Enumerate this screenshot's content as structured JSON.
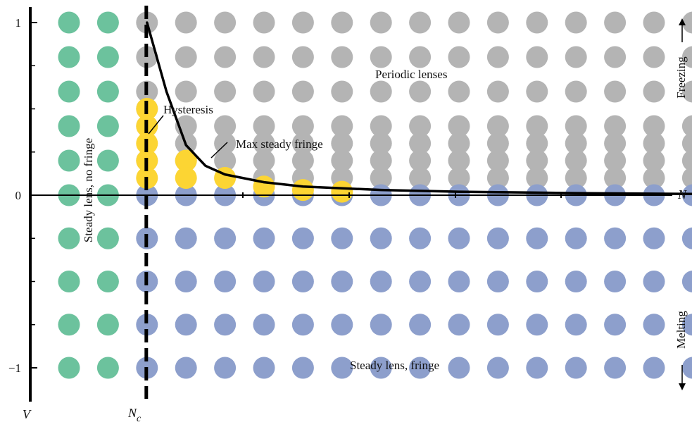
{
  "chart_data": {
    "type": "scatter",
    "title": "",
    "xlabel": "N",
    "ylabel": "V",
    "critical_label_base": "N",
    "critical_label_sub": "c",
    "ylim": [
      -1.13,
      1.14
    ],
    "y_ticks": [
      1,
      0,
      -1
    ],
    "y_tick_labels": [
      "1",
      "0",
      "−1"
    ],
    "y_minor_ticks": [
      0.75,
      0.5,
      0.25,
      -0.25,
      -0.5,
      -0.75
    ],
    "grid": false,
    "legend": "none",
    "colors": {
      "steady_lens_no_fringe": "#6cc29d",
      "periodic_lenses": "#b4b4b4",
      "steady_lens_fringe": "#8d9fcc",
      "hysteresis": "#fcd533",
      "curve": "#000000",
      "dashed_line": "#000000"
    },
    "x_columns": 17,
    "v_levels": [
      1.0,
      0.8,
      0.6,
      0.4,
      0.2,
      0.0,
      -0.25,
      -0.5,
      -0.75,
      -1.0
    ],
    "v_upper_extra": [
      0.1,
      0.3,
      0.5
    ],
    "critical_column": 2,
    "regions": [
      {
        "key": "steady_lens_no_fringe",
        "name": "Steady lens, no fringe",
        "columns": [
          0,
          1
        ],
        "v_range": [
          -1.0,
          1.0
        ]
      },
      {
        "key": "periodic_lenses",
        "name": "Periodic lenses",
        "columns": [
          2,
          16
        ],
        "v_range": [
          0.05,
          1.0
        ]
      },
      {
        "key": "steady_lens_fringe",
        "name": "Steady lens, fringe",
        "columns": [
          2,
          16
        ],
        "v_range": [
          -1.0,
          0.0
        ]
      }
    ],
    "hysteresis_points": [
      {
        "column": 2,
        "v": [
          0.5,
          0.4,
          0.3,
          0.2,
          0.1
        ]
      },
      {
        "column": 3,
        "v": [
          0.2,
          0.1
        ]
      },
      {
        "column": 4,
        "v": [
          0.1
        ]
      },
      {
        "column": 5,
        "v": [
          0.05
        ]
      },
      {
        "column": 6,
        "v": [
          0.03
        ]
      },
      {
        "column": 7,
        "v": [
          0.02
        ]
      }
    ],
    "max_steady_fringe_curve": [
      {
        "column": 2.0,
        "v": 1.0
      },
      {
        "column": 2.2,
        "v": 0.84
      },
      {
        "column": 2.5,
        "v": 0.6
      },
      {
        "column": 3.0,
        "v": 0.29
      },
      {
        "column": 3.5,
        "v": 0.17
      },
      {
        "column": 4.0,
        "v": 0.12
      },
      {
        "column": 5.0,
        "v": 0.075
      },
      {
        "column": 6.0,
        "v": 0.05
      },
      {
        "column": 8.0,
        "v": 0.03
      },
      {
        "column": 10.0,
        "v": 0.02
      },
      {
        "column": 13.0,
        "v": 0.012
      },
      {
        "column": 16.0,
        "v": 0.007
      }
    ],
    "annotations": {
      "periodic": "Periodic lenses",
      "hysteresis": "Hysteresis",
      "max_fringe": "Max steady fringe",
      "no_fringe": "Steady lens, no fringe",
      "fringe": "Steady lens, fringe",
      "freezing": "Freezing",
      "melting": "Melting"
    }
  }
}
